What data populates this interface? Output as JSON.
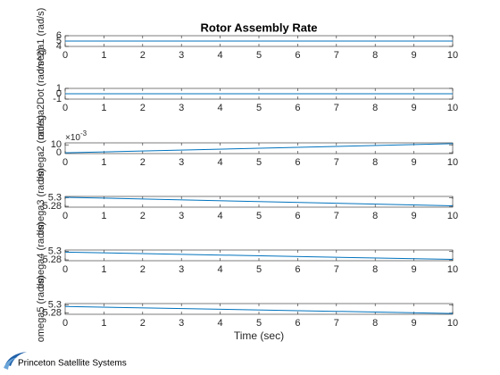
{
  "chart_data": [
    {
      "type": "line",
      "title": "Rotor Assembly Rate",
      "ylabel": "omega1 (rad/s)",
      "x": [
        0,
        10
      ],
      "series": [
        {
          "color": "#0072bd",
          "values": [
            5,
            5
          ]
        }
      ],
      "xlim": [
        0,
        10
      ],
      "xticks": [
        0,
        1,
        2,
        3,
        4,
        5,
        6,
        7,
        8,
        9,
        10
      ],
      "ylim": [
        4,
        6
      ],
      "yticks": [
        4,
        5,
        6
      ]
    },
    {
      "type": "line",
      "ylabel": "omega2Dot (rad/s^2)",
      "x": [
        0,
        10
      ],
      "series": [
        {
          "color": "#0072bd",
          "values": [
            0,
            0
          ]
        }
      ],
      "xlim": [
        0,
        10
      ],
      "xticks": [
        0,
        1,
        2,
        3,
        4,
        5,
        6,
        7,
        8,
        9,
        10
      ],
      "ylim": [
        -1,
        1
      ],
      "yticks": [
        -1,
        0,
        1
      ]
    },
    {
      "type": "line",
      "ylabel": "omega2 (rad/s)",
      "exponent_base": "×10",
      "exponent": "-3",
      "x": [
        0,
        10
      ],
      "series": [
        {
          "color": "#0072bd",
          "values": [
            0,
            0.0115
          ]
        }
      ],
      "xlim": [
        0,
        10
      ],
      "xticks": [
        0,
        1,
        2,
        3,
        4,
        5,
        6,
        7,
        8,
        9,
        10
      ],
      "ylim": [
        -0.001,
        0.0125
      ],
      "yticks": [
        0,
        {
          "value": 0.01,
          "label": "10"
        }
      ]
    },
    {
      "type": "line",
      "ylabel": "omega3 (rad/s)",
      "x": [
        0,
        10
      ],
      "series": [
        {
          "color": "#0072bd",
          "values": [
            5.301,
            5.281
          ]
        }
      ],
      "xlim": [
        0,
        10
      ],
      "xticks": [
        0,
        1,
        2,
        3,
        4,
        5,
        6,
        7,
        8,
        9,
        10
      ],
      "ylim": [
        5.278,
        5.303
      ],
      "yticks": [
        5.28,
        5.3
      ]
    },
    {
      "type": "line",
      "ylabel": "omega4 (rad/s)",
      "x": [
        0,
        10
      ],
      "series": [
        {
          "color": "#0072bd",
          "values": [
            5.298,
            5.281
          ]
        }
      ],
      "xlim": [
        0,
        10
      ],
      "xticks": [
        0,
        1,
        2,
        3,
        4,
        5,
        6,
        7,
        8,
        9,
        10
      ],
      "ylim": [
        5.278,
        5.303
      ],
      "yticks": [
        5.28,
        5.3
      ]
    },
    {
      "type": "line",
      "ylabel": "omega5 (rad/s)",
      "xlabel": "Time (sec)",
      "x": [
        0,
        10
      ],
      "series": [
        {
          "color": "#0072bd",
          "values": [
            5.296,
            5.279
          ]
        }
      ],
      "xlim": [
        0,
        10
      ],
      "xticks": [
        0,
        1,
        2,
        3,
        4,
        5,
        6,
        7,
        8,
        9,
        10
      ],
      "ylim": [
        5.277,
        5.303
      ],
      "yticks": [
        5.28,
        5.3
      ]
    }
  ],
  "logo": "Princeton Satellite Systems"
}
